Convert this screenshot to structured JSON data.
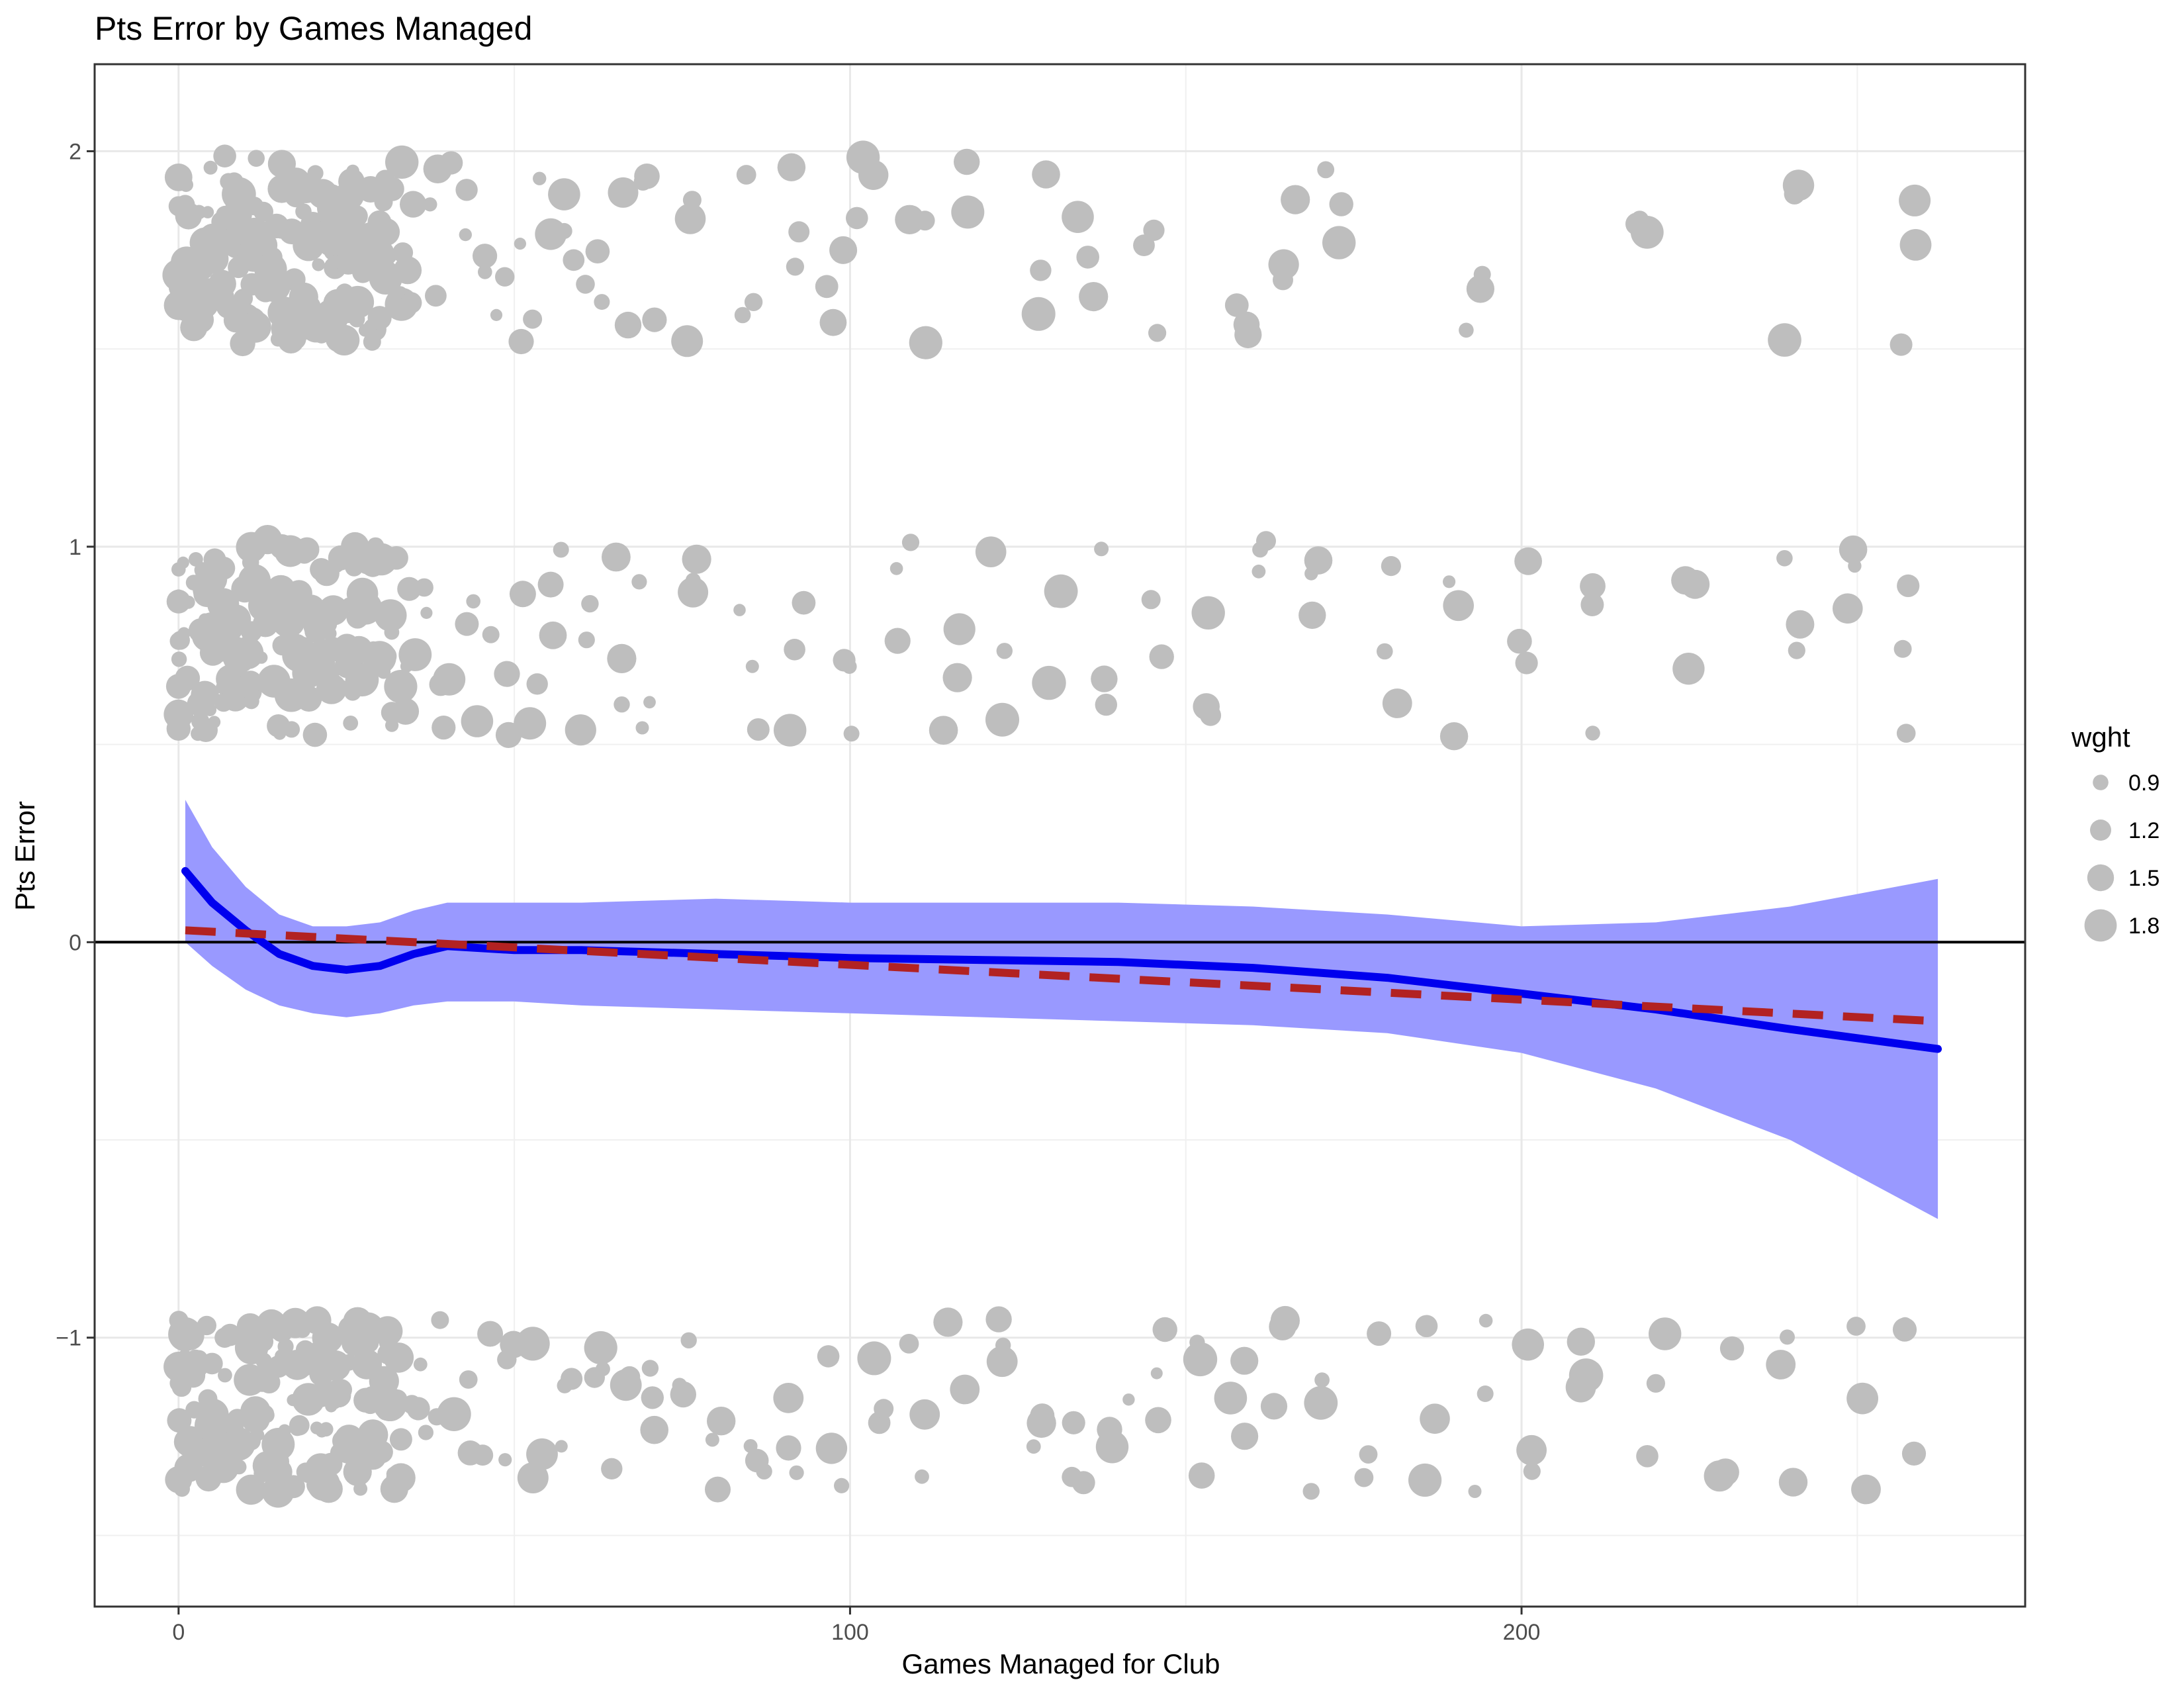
{
  "chart_data": {
    "type": "scatter",
    "title": "Pts Error by Games Managed",
    "xlabel": "Games Managed for Club",
    "ylabel": "Pts Error",
    "xlim": [
      -12.5,
      275
    ],
    "ylim": [
      -1.68,
      2.22
    ],
    "x_ticks": [
      {
        "value": 0,
        "label": "0"
      },
      {
        "value": 100,
        "label": "100"
      },
      {
        "value": 200,
        "label": "200"
      }
    ],
    "x_minor_ticks": [
      50,
      150,
      250
    ],
    "y_ticks": [
      {
        "value": -1,
        "label": "−1"
      },
      {
        "value": 0,
        "label": "0"
      },
      {
        "value": 1,
        "label": "1"
      },
      {
        "value": 2,
        "label": "2"
      }
    ],
    "y_minor_ticks": [
      -1.5,
      -0.5,
      0.5,
      1.5
    ],
    "grid": true,
    "reference_line_y": 0,
    "point_color": "#bebebe",
    "smooth_color": "#0000ee",
    "ribbon_color": "#9999ff",
    "linear_fit_color": "#b22222",
    "legend": {
      "title": "wght",
      "position": "right",
      "entries": [
        {
          "label": "0.9",
          "value": 0.9
        },
        {
          "label": "1.2",
          "value": 1.2
        },
        {
          "label": "1.5",
          "value": 1.5
        },
        {
          "label": "1.8",
          "value": 1.8
        }
      ]
    },
    "series": [
      {
        "kind": "points",
        "clusters": [
          {
            "x": [
              0,
              2,
              4,
              6,
              8,
              10,
              12,
              14,
              16,
              18,
              20,
              22,
              24,
              26,
              28,
              30,
              32,
              35,
              38,
              42,
              46,
              50,
              54,
              58,
              62,
              66,
              70,
              75,
              85,
              92,
              98,
              102,
              110,
              118,
              128,
              135,
              145,
              158,
              165,
              172,
              193,
              218,
              240,
              258
            ],
            "y_center": 1.75,
            "y_spread": 0.24
          },
          {
            "x": [
              0,
              2,
              4,
              6,
              8,
              10,
              12,
              14,
              16,
              18,
              20,
              22,
              24,
              26,
              28,
              30,
              33,
              36,
              40,
              44,
              48,
              52,
              56,
              60,
              65,
              70,
              78,
              85,
              92,
              100,
              108,
              115,
              122,
              130,
              138,
              146,
              154,
              162,
              170,
              180,
              190,
              200,
              210,
              225,
              240,
              250,
              258
            ],
            "y_center": 0.77,
            "y_spread": 0.25
          },
          {
            "x": [
              0,
              2,
              4,
              6,
              8,
              10,
              12,
              14,
              16,
              18,
              20,
              22,
              24,
              26,
              28,
              30,
              32,
              35,
              38,
              42,
              46,
              50,
              54,
              58,
              62,
              66,
              70,
              75,
              80,
              86,
              92,
              98,
              104,
              110,
              116,
              122,
              128,
              134,
              140,
              146,
              152,
              158,
              164,
              170,
              178,
              186,
              194,
              202,
              210,
              220,
              230,
              240,
              250,
              258
            ],
            "y_center": -1.17,
            "y_spread": 0.22
          }
        ]
      },
      {
        "name": "",
        "kind": "smooth",
        "x": [
          1,
          5,
          10,
          15,
          20,
          25,
          30,
          35,
          40,
          50,
          60,
          80,
          100,
          120,
          140,
          160,
          180,
          200,
          220,
          240,
          262
        ],
        "y": [
          0.18,
          0.1,
          0.03,
          -0.03,
          -0.06,
          -0.07,
          -0.06,
          -0.03,
          -0.01,
          -0.02,
          -0.02,
          -0.03,
          -0.04,
          -0.045,
          -0.05,
          -0.065,
          -0.09,
          -0.13,
          -0.17,
          -0.22,
          -0.27
        ],
        "lower": [
          0.0,
          -0.06,
          -0.12,
          -0.16,
          -0.18,
          -0.19,
          -0.18,
          -0.16,
          -0.15,
          -0.15,
          -0.16,
          -0.17,
          -0.18,
          -0.19,
          -0.2,
          -0.21,
          -0.23,
          -0.28,
          -0.37,
          -0.5,
          -0.7
        ],
        "upper": [
          0.36,
          0.24,
          0.14,
          0.07,
          0.04,
          0.04,
          0.05,
          0.08,
          0.1,
          0.1,
          0.1,
          0.11,
          0.1,
          0.1,
          0.1,
          0.09,
          0.07,
          0.04,
          0.05,
          0.09,
          0.16
        ]
      },
      {
        "name": "",
        "kind": "linear",
        "x": [
          1,
          262
        ],
        "y": [
          0.03,
          -0.2
        ]
      }
    ]
  }
}
